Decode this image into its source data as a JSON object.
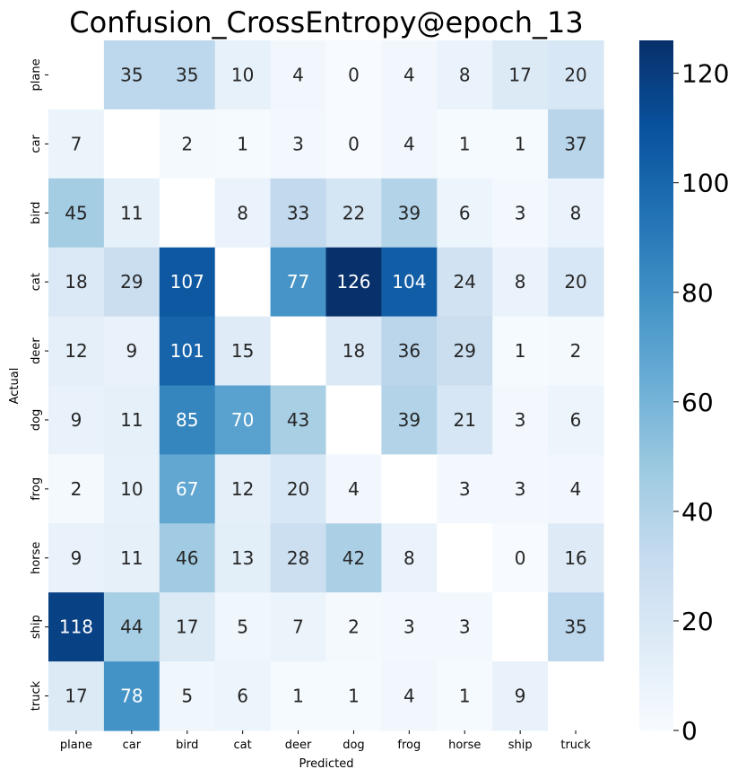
{
  "chart_data": {
    "type": "heatmap",
    "title": "Confusion_CrossEntropy@epoch_13",
    "xlabel": "Predicted",
    "ylabel": "Actual",
    "x_categories": [
      "plane",
      "car",
      "bird",
      "cat",
      "deer",
      "dog",
      "frog",
      "horse",
      "ship",
      "truck"
    ],
    "y_categories": [
      "plane",
      "car",
      "bird",
      "cat",
      "deer",
      "dog",
      "frog",
      "horse",
      "ship",
      "truck"
    ],
    "values": [
      [
        null,
        35,
        35,
        10,
        4,
        0,
        4,
        8,
        17,
        20
      ],
      [
        7,
        null,
        2,
        1,
        3,
        0,
        4,
        1,
        1,
        37
      ],
      [
        45,
        11,
        null,
        8,
        33,
        22,
        39,
        6,
        3,
        8
      ],
      [
        18,
        29,
        107,
        null,
        77,
        126,
        104,
        24,
        8,
        20
      ],
      [
        12,
        9,
        101,
        15,
        null,
        18,
        36,
        29,
        1,
        2
      ],
      [
        9,
        11,
        85,
        70,
        43,
        null,
        39,
        21,
        3,
        6
      ],
      [
        2,
        10,
        67,
        12,
        20,
        4,
        null,
        3,
        3,
        4
      ],
      [
        9,
        11,
        46,
        13,
        28,
        42,
        8,
        null,
        0,
        16
      ],
      [
        118,
        44,
        17,
        5,
        7,
        2,
        3,
        3,
        null,
        35
      ],
      [
        17,
        78,
        5,
        6,
        1,
        1,
        4,
        1,
        9,
        null
      ]
    ],
    "colorbar": {
      "min": 0,
      "max": 126,
      "ticks": [
        0,
        20,
        40,
        60,
        80,
        100,
        120
      ],
      "colormap": "Blues"
    }
  }
}
